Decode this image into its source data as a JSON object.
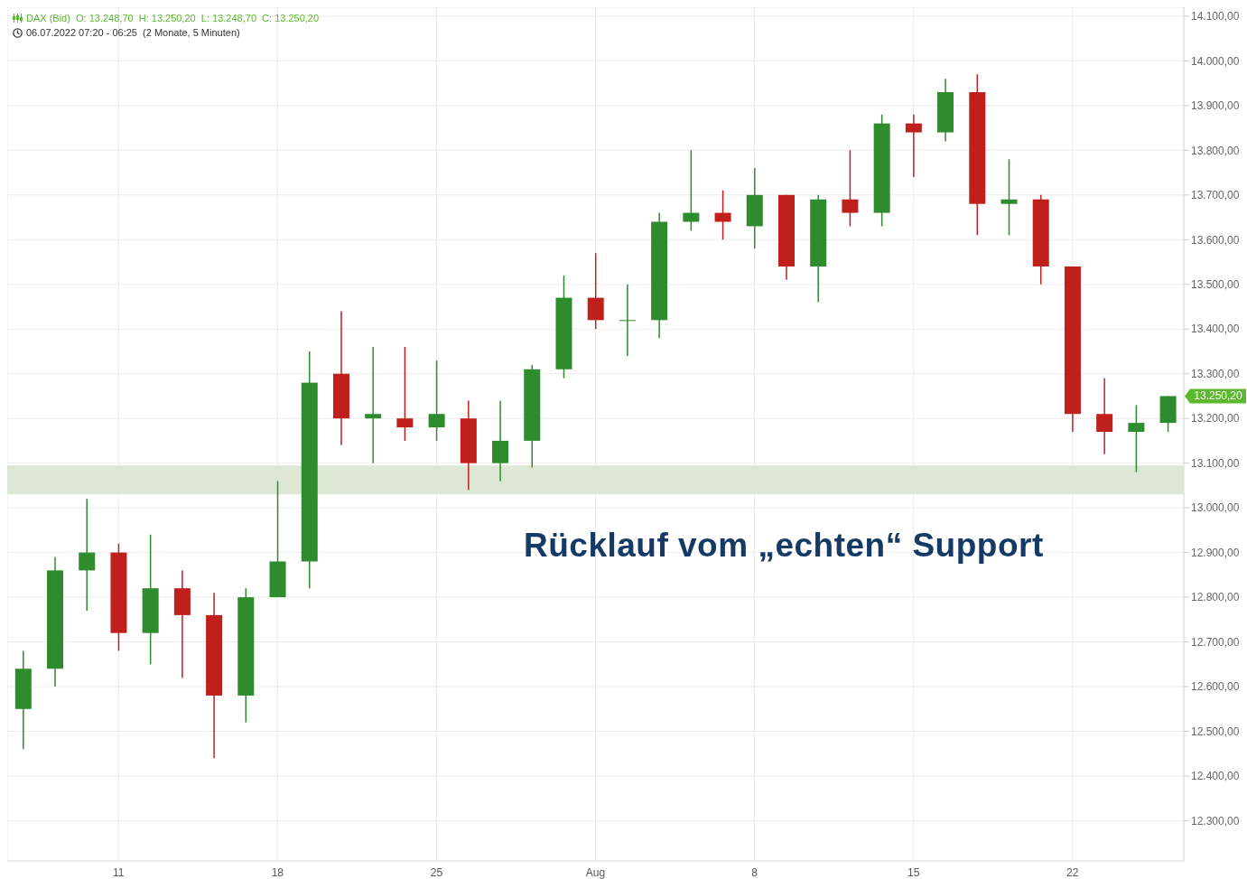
{
  "chart_data": {
    "type": "candlestick",
    "title": "DAX (Bid)  O: 13.248,70  H: 13.250,20  L: 13.248,70  C: 13.250,20",
    "subtitle": "06.07.2022 07:20 - 06:25  (2 Monate, 5 Minuten)",
    "categories": [
      null,
      null,
      null,
      "11",
      null,
      null,
      null,
      null,
      "18",
      null,
      null,
      null,
      null,
      "25",
      null,
      null,
      null,
      null,
      "Aug",
      null,
      null,
      null,
      null,
      "8",
      null,
      null,
      null,
      null,
      "15",
      null,
      null,
      null,
      null,
      "22",
      null,
      null,
      null
    ],
    "ohlc": [
      [
        12550,
        12680,
        12460,
        12640
      ],
      [
        12640,
        12890,
        12600,
        12860
      ],
      [
        12860,
        13020,
        12770,
        12900
      ],
      [
        12900,
        12920,
        12680,
        12720
      ],
      [
        12720,
        12940,
        12650,
        12820
      ],
      [
        12820,
        12860,
        12620,
        12760
      ],
      [
        12760,
        12810,
        12440,
        12580
      ],
      [
        12580,
        12820,
        12520,
        12800
      ],
      [
        12800,
        13060,
        12800,
        12880
      ],
      [
        12880,
        13350,
        12820,
        13280
      ],
      [
        13300,
        13440,
        13140,
        13200
      ],
      [
        13200,
        13360,
        13100,
        13210
      ],
      [
        13200,
        13360,
        13150,
        13180
      ],
      [
        13180,
        13330,
        13150,
        13210
      ],
      [
        13200,
        13240,
        13040,
        13100
      ],
      [
        13100,
        13240,
        13060,
        13150
      ],
      [
        13150,
        13320,
        13090,
        13310
      ],
      [
        13310,
        13520,
        13290,
        13470
      ],
      [
        13470,
        13570,
        13400,
        13420
      ],
      [
        13420,
        13500,
        13340,
        13420
      ],
      [
        13420,
        13660,
        13380,
        13640
      ],
      [
        13640,
        13800,
        13620,
        13660
      ],
      [
        13660,
        13710,
        13600,
        13640
      ],
      [
        13630,
        13760,
        13580,
        13700
      ],
      [
        13700,
        13700,
        13510,
        13540
      ],
      [
        13540,
        13700,
        13460,
        13690
      ],
      [
        13690,
        13800,
        13630,
        13660
      ],
      [
        13660,
        13880,
        13630,
        13860
      ],
      [
        13860,
        13880,
        13740,
        13840
      ],
      [
        13840,
        13960,
        13820,
        13930
      ],
      [
        13930,
        13970,
        13610,
        13680
      ],
      [
        13680,
        13780,
        13610,
        13690
      ],
      [
        13690,
        13700,
        13500,
        13540
      ],
      [
        13540,
        13540,
        13170,
        13210
      ],
      [
        13210,
        13290,
        13120,
        13170
      ],
      [
        13170,
        13230,
        13080,
        13190
      ],
      [
        13190,
        13250,
        13170,
        13250
      ]
    ],
    "colors": [
      "#2e8b2e",
      "#2e8b2e",
      "#2e8b2e",
      "#c0201c",
      "#2e8b2e",
      "#c0201c",
      "#c0201c",
      "#2e8b2e",
      "#2e8b2e",
      "#2e8b2e",
      "#c0201c",
      "#2e8b2e",
      "#c0201c",
      "#2e8b2e",
      "#c0201c",
      "#2e8b2e",
      "#2e8b2e",
      "#2e8b2e",
      "#c0201c",
      "#2e8b2e",
      "#2e8b2e",
      "#2e8b2e",
      "#c0201c",
      "#2e8b2e",
      "#c0201c",
      "#2e8b2e",
      "#c0201c",
      "#2e8b2e",
      "#c0201c",
      "#2e8b2e",
      "#c0201c",
      "#2e8b2e",
      "#c0201c",
      "#c0201c",
      "#c0201c",
      "#2e8b2e",
      "#2e8b2e"
    ],
    "ylim": [
      12210,
      14120
    ],
    "yticks": [
      {
        "value": 12300,
        "label": "12.300,00"
      },
      {
        "value": 12400,
        "label": "12.400,00"
      },
      {
        "value": 12500,
        "label": "12.500,00"
      },
      {
        "value": 12600,
        "label": "12.600,00"
      },
      {
        "value": 12700,
        "label": "12.700,00"
      },
      {
        "value": 12800,
        "label": "12.800,00"
      },
      {
        "value": 12900,
        "label": "12.900,00"
      },
      {
        "value": 13000,
        "label": "13.000,00"
      },
      {
        "value": 13100,
        "label": "13.100,00"
      },
      {
        "value": 13200,
        "label": "13.200,00"
      },
      {
        "value": 13300,
        "label": "13.300,00"
      },
      {
        "value": 13400,
        "label": "13.400,00"
      },
      {
        "value": 13500,
        "label": "13.500,00"
      },
      {
        "value": 13600,
        "label": "13.600,00"
      },
      {
        "value": 13700,
        "label": "13.700,00"
      },
      {
        "value": 13800,
        "label": "13.800,00"
      },
      {
        "value": 13900,
        "label": "13.900,00"
      },
      {
        "value": 14000,
        "label": "14.000,00"
      },
      {
        "value": 14100,
        "label": "14.100,00"
      }
    ],
    "bands": [
      {
        "axis": "y",
        "from": 13030,
        "to": 13095,
        "color": "#dce8d3"
      }
    ],
    "annotations": [
      "Rücklauf vom „echten“ Support",
      "13.250,20"
    ],
    "grid": true
  }
}
